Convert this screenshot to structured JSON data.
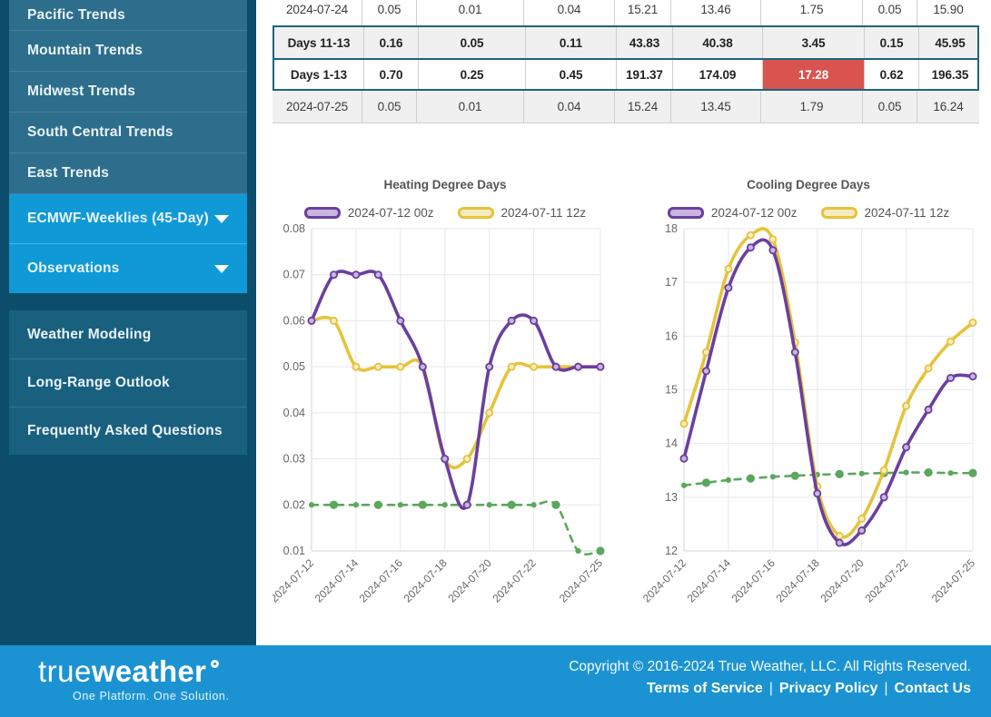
{
  "colors": {
    "sidebar_bg": "#0c4d6b",
    "sidebar_item_bg": "#2d6e8c",
    "sidebar_item_active_bg": "#0f9ad7",
    "sidebar_secondary_item_bg": "#19607f",
    "highlight_border": "#1d657f",
    "alert_cell_bg": "#d9534f",
    "footer_bg": "#1b93d2"
  },
  "sidebar": {
    "primary_items": [
      {
        "label": "Pacific Trends",
        "expandable": false,
        "active": false
      },
      {
        "label": "Mountain Trends",
        "expandable": false,
        "active": false
      },
      {
        "label": "Midwest Trends",
        "expandable": false,
        "active": false
      },
      {
        "label": "South Central Trends",
        "expandable": false,
        "active": false
      },
      {
        "label": "East Trends",
        "expandable": false,
        "active": false
      },
      {
        "label": "ECMWF-Weeklies (45-Day)",
        "expandable": true,
        "active": true
      },
      {
        "label": "Observations",
        "expandable": true,
        "active": true
      }
    ],
    "secondary_items": [
      {
        "label": "Weather Modeling"
      },
      {
        "label": "Long-Range Outlook"
      },
      {
        "label": "Frequently Asked Questions"
      }
    ]
  },
  "table": {
    "rows": [
      {
        "label": "2024-07-24",
        "bold": false,
        "highlighted": false,
        "alert_cell_index": null,
        "values": [
          "0.05",
          "0.01",
          "0.04",
          "15.21",
          "13.46",
          "1.75",
          "0.05",
          "15.90"
        ]
      },
      {
        "label": "Days 11-13",
        "bold": true,
        "highlighted": true,
        "alert_cell_index": null,
        "values": [
          "0.16",
          "0.05",
          "0.11",
          "43.83",
          "40.38",
          "3.45",
          "0.15",
          "45.95"
        ]
      },
      {
        "label": "Days 1-13",
        "bold": true,
        "highlighted": true,
        "alert_cell_index": 5,
        "values": [
          "0.70",
          "0.25",
          "0.45",
          "191.37",
          "174.09",
          "17.28",
          "0.62",
          "196.35"
        ]
      },
      {
        "label": "2024-07-25",
        "bold": false,
        "highlighted": false,
        "alert_cell_index": null,
        "values": [
          "0.05",
          "0.01",
          "0.04",
          "15.24",
          "13.45",
          "1.79",
          "0.05",
          "16.24"
        ]
      }
    ]
  },
  "chart_data": [
    {
      "type": "line",
      "title": "Heating Degree Days",
      "xlabel": "",
      "ylabel": "",
      "grid": true,
      "legend_position": "top",
      "x": [
        "2024-07-12",
        "2024-07-13",
        "2024-07-14",
        "2024-07-15",
        "2024-07-16",
        "2024-07-17",
        "2024-07-18",
        "2024-07-19",
        "2024-07-20",
        "2024-07-21",
        "2024-07-22",
        "2024-07-23",
        "2024-07-24",
        "2024-07-25"
      ],
      "x_tick_indices": [
        0,
        2,
        4,
        6,
        8,
        10,
        13
      ],
      "x_tick_labels": [
        "2024-07-12",
        "2024-07-14",
        "2024-07-16",
        "2024-07-18",
        "2024-07-20",
        "2024-07-22",
        "2024-07-25"
      ],
      "ylim": [
        0.01,
        0.08
      ],
      "yticks": [
        0.08,
        0.07,
        0.06,
        0.05,
        0.04,
        0.03,
        0.02,
        0.01
      ],
      "ytick_labels": [
        "0.08",
        "0.07",
        "0.06",
        "0.05",
        "0.04",
        "0.03",
        "0.02",
        "0.01"
      ],
      "series": [
        {
          "name": "2024-07-12 00z",
          "color": "#6a3fa0",
          "fill": "#c9b5de",
          "dashed": false,
          "legend": true,
          "values": [
            0.06,
            0.07,
            0.07,
            0.07,
            0.06,
            0.05,
            0.03,
            0.02,
            0.05,
            0.06,
            0.06,
            0.05,
            0.05,
            0.05
          ]
        },
        {
          "name": "2024-07-11 12z",
          "color": "#e6c33c",
          "fill": "#f6ecc0",
          "dashed": false,
          "legend": true,
          "values": [
            0.06,
            0.06,
            0.05,
            0.05,
            0.05,
            0.05,
            0.03,
            0.03,
            0.04,
            0.05,
            0.05,
            0.05,
            0.05,
            0.05
          ]
        },
        {
          "name": "",
          "color": "#5ba85c",
          "fill": "#5ba85c",
          "dashed": true,
          "legend": false,
          "values": [
            0.02,
            0.02,
            0.02,
            0.02,
            0.02,
            0.02,
            0.02,
            0.02,
            0.02,
            0.02,
            0.02,
            0.02,
            0.01,
            0.01
          ]
        }
      ]
    },
    {
      "type": "line",
      "title": "Cooling Degree Days",
      "xlabel": "",
      "ylabel": "",
      "grid": true,
      "legend_position": "top",
      "x": [
        "2024-07-12",
        "2024-07-13",
        "2024-07-14",
        "2024-07-15",
        "2024-07-16",
        "2024-07-17",
        "2024-07-18",
        "2024-07-19",
        "2024-07-20",
        "2024-07-21",
        "2024-07-22",
        "2024-07-23",
        "2024-07-24",
        "2024-07-25"
      ],
      "x_tick_indices": [
        0,
        2,
        4,
        6,
        8,
        10,
        13
      ],
      "x_tick_labels": [
        "2024-07-12",
        "2024-07-14",
        "2024-07-16",
        "2024-07-18",
        "2024-07-20",
        "2024-07-22",
        "2024-07-25"
      ],
      "ylim": [
        12,
        18
      ],
      "yticks": [
        18,
        17,
        16,
        15,
        14,
        13,
        12
      ],
      "ytick_labels": [
        "18",
        "17",
        "16",
        "15",
        "14",
        "13",
        "12"
      ],
      "series": [
        {
          "name": "2024-07-12 00z",
          "color": "#6a3fa0",
          "fill": "#c9b5de",
          "dashed": false,
          "legend": true,
          "values": [
            13.72,
            15.35,
            16.9,
            17.65,
            17.6,
            15.7,
            13.07,
            12.15,
            12.38,
            13.0,
            13.93,
            14.63,
            15.22,
            15.25
          ]
        },
        {
          "name": "2024-07-11 12z",
          "color": "#e6c33c",
          "fill": "#f6ecc0",
          "dashed": false,
          "legend": true,
          "values": [
            14.37,
            15.7,
            17.25,
            17.88,
            17.8,
            15.88,
            13.2,
            12.28,
            12.6,
            13.5,
            14.7,
            15.4,
            15.9,
            16.25
          ]
        },
        {
          "name": "",
          "color": "#5ba85c",
          "fill": "#5ba85c",
          "dashed": true,
          "legend": false,
          "values": [
            13.22,
            13.27,
            13.32,
            13.35,
            13.38,
            13.4,
            13.42,
            13.43,
            13.44,
            13.45,
            13.46,
            13.46,
            13.45,
            13.45
          ]
        }
      ]
    }
  ],
  "footer": {
    "logo_prefix": "true",
    "logo_suffix": "weather",
    "logo_degree": "°",
    "tagline": "One Platform. One Solution.",
    "copyright": "Copyright © 2016-2024 True Weather, LLC. All Rights Reserved.",
    "links": [
      "Terms of Service",
      "Privacy Policy",
      "Contact Us"
    ],
    "link_separator": "|"
  }
}
